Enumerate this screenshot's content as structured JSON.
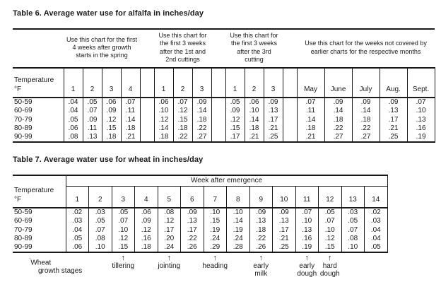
{
  "table6": {
    "title": "Table 6. Average water use for alfalfa in inches/day",
    "temp_header_line1": "Temperature",
    "temp_header_line2": "°F",
    "groups": [
      {
        "header": "Use this chart for the first 4 weeks after growth starts in the spring",
        "columns": [
          "1",
          "2",
          "3",
          "4"
        ]
      },
      {
        "header": "Use this chart for the first 3 weeks after the 1st and 2nd cuttings",
        "columns": [
          "1",
          "2",
          "3"
        ]
      },
      {
        "header": "Use this chart for the first 3 weeks after the 3rd cutting",
        "columns": [
          "1",
          "2",
          "3"
        ]
      },
      {
        "header": "Use this chart for the weeks not covered by earlier charts for the respective months",
        "columns": [
          "May",
          "June",
          "July",
          "Aug.",
          "Sept."
        ]
      }
    ],
    "rows": [
      {
        "temp": "50-59",
        "group_values": [
          [
            ".04",
            ".05",
            ".06",
            ".07"
          ],
          [
            ".06",
            ".07",
            ".09"
          ],
          [
            ".05",
            ".06",
            ".09"
          ],
          [
            ".07",
            ".09",
            ".09",
            ".09",
            ".07"
          ]
        ]
      },
      {
        "temp": "60-69",
        "group_values": [
          [
            ".04",
            ".07",
            ".09",
            ".11"
          ],
          [
            ".10",
            ".12",
            ".14"
          ],
          [
            ".09",
            ".10",
            ".13"
          ],
          [
            ".11",
            ".14",
            ".14",
            ".13",
            ".10"
          ]
        ]
      },
      {
        "temp": "70-79",
        "group_values": [
          [
            ".05",
            ".09",
            ".12",
            ".14"
          ],
          [
            ".12",
            ".15",
            ".18"
          ],
          [
            ".12",
            ".14",
            ".17"
          ],
          [
            ".14",
            ".18",
            ".18",
            ".17",
            ".13"
          ]
        ]
      },
      {
        "temp": "80-89",
        "group_values": [
          [
            ".06",
            ".11",
            ".15",
            ".18"
          ],
          [
            ".14",
            ".18",
            ".22"
          ],
          [
            ".15",
            ".18",
            ".21"
          ],
          [
            ".18",
            ".22",
            ".22",
            ".21",
            ".16"
          ]
        ]
      },
      {
        "temp": "90-99",
        "group_values": [
          [
            ".08",
            ".13",
            ".18",
            ".21"
          ],
          [
            ".18",
            ".22",
            ".27"
          ],
          [
            ".17",
            ".21",
            ".25"
          ],
          [
            ".21",
            ".27",
            ".27",
            ".25",
            ".19"
          ]
        ]
      }
    ]
  },
  "table7": {
    "title": "Table 7. Average water use for wheat in inches/day",
    "span_header": "Week after emergence",
    "temp_header_line1": "Temperature",
    "temp_header_line2": "°F",
    "columns": [
      "1",
      "2",
      "3",
      "4",
      "5",
      "6",
      "7",
      "8",
      "9",
      "10",
      "11",
      "12",
      "13",
      "14"
    ],
    "rows": [
      {
        "temp": "50-59",
        "values": [
          ".02",
          ".03",
          ".05",
          ".06",
          ".08",
          ".09",
          ".10",
          ".10",
          ".09",
          ".09",
          ".07",
          ".05",
          ".03",
          ".02"
        ]
      },
      {
        "temp": "60-69",
        "values": [
          ".03",
          ".05",
          ".07",
          ".09",
          ".12",
          ".13",
          ".15",
          ".14",
          ".13",
          ".13",
          ".10",
          ".07",
          ".05",
          ".03"
        ]
      },
      {
        "temp": "70-79",
        "values": [
          ".04",
          ".07",
          ".10",
          ".12",
          ".17",
          ".17",
          ".19",
          ".19",
          ".18",
          ".17",
          ".13",
          ".10",
          ".07",
          ".04"
        ]
      },
      {
        "temp": "80-89",
        "values": [
          ".05",
          ".08",
          ".12",
          ".16",
          ".20",
          ".22",
          ".24",
          ".24",
          ".22",
          ".21",
          ".16",
          ".12",
          ".08",
          ".04"
        ]
      },
      {
        "temp": "90-99",
        "values": [
          ".06",
          ".10",
          ".15",
          ".18",
          ".24",
          ".26",
          ".29",
          ".28",
          ".26",
          ".25",
          ".19",
          ".15",
          ".10",
          ".05"
        ]
      }
    ],
    "growth_stages": {
      "footnote_mark": "'",
      "label_line1": "Wheat",
      "label_line2": "growth stages",
      "arrow": "↑",
      "stages": [
        {
          "label_lines": [
            "tillering"
          ],
          "column": 3
        },
        {
          "label_lines": [
            "jointing"
          ],
          "column": 5
        },
        {
          "label_lines": [
            "heading"
          ],
          "column": 7
        },
        {
          "label_lines": [
            "early",
            "milk"
          ],
          "column": 9
        },
        {
          "label_lines": [
            "early",
            "dough"
          ],
          "column": 11
        },
        {
          "label_lines": [
            "hard",
            "dough"
          ],
          "column": 12
        }
      ]
    }
  }
}
